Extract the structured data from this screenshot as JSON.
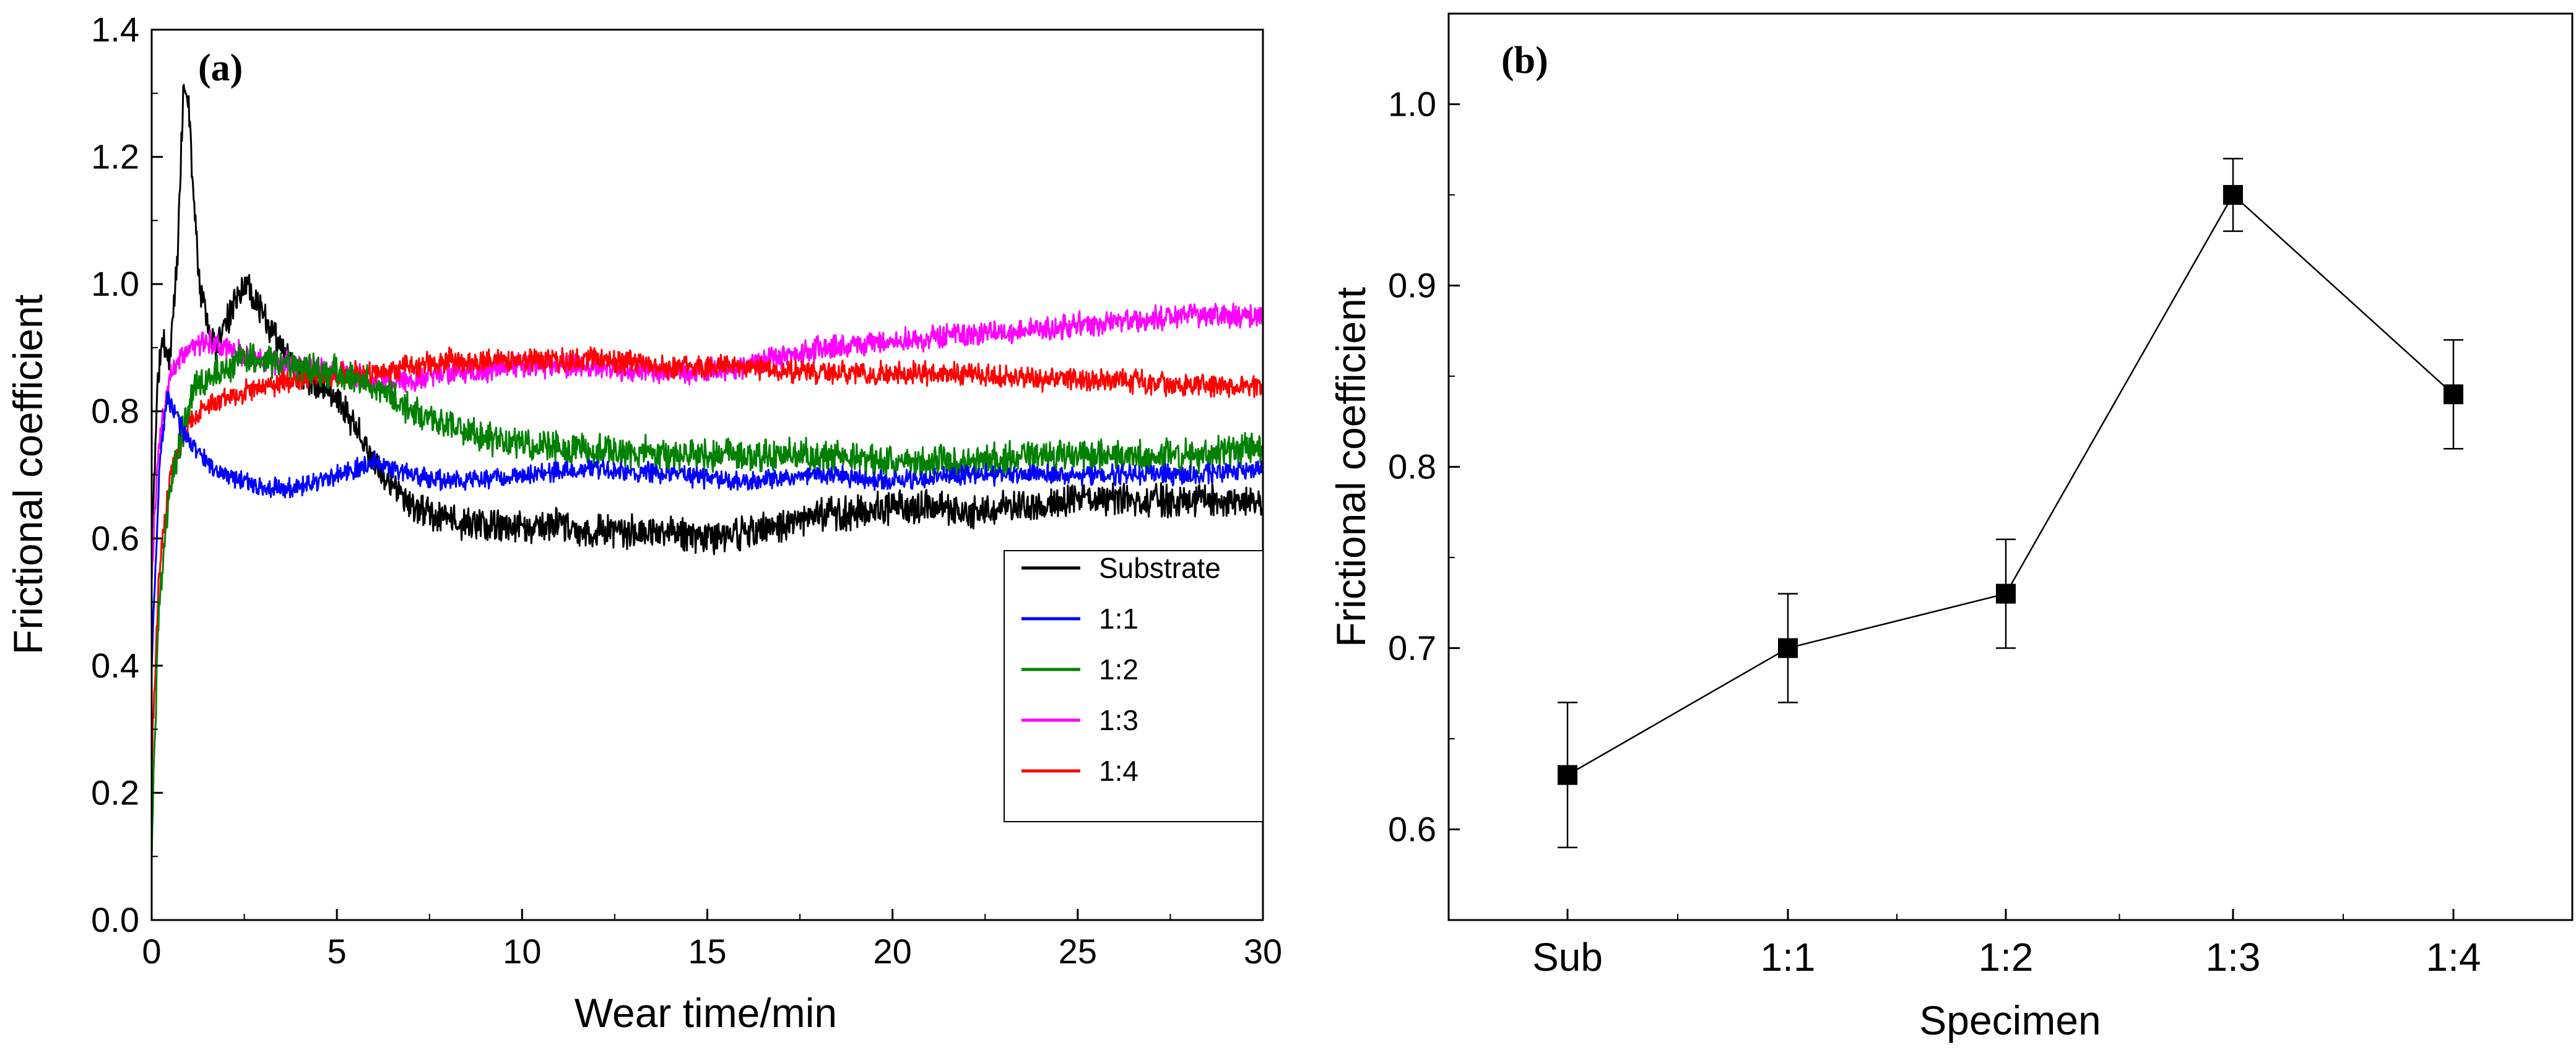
{
  "chart_data": [
    {
      "panel": "(a)",
      "type": "line",
      "xlabel": "Wear time/min",
      "ylabel": "Frictional coefficient",
      "xlim": [
        0,
        30
      ],
      "ylim": [
        0.0,
        1.4
      ],
      "xticks": [
        0,
        5,
        10,
        15,
        20,
        25,
        30
      ],
      "yticks": [
        "0.0",
        "0.2",
        "0.4",
        "0.6",
        "0.8",
        "1.0",
        "1.2",
        "1.4"
      ],
      "legend_position": "right, lower-middle",
      "series": [
        {
          "name": "Substrate",
          "color": "#000000",
          "noise": 0.02,
          "x": [
            0,
            0.15,
            0.3,
            0.5,
            0.7,
            0.85,
            1.0,
            1.15,
            1.3,
            1.5,
            1.8,
            2.2,
            2.6,
            3.0,
            3.5,
            4.0,
            4.5,
            5.0,
            5.5,
            6.0,
            6.5,
            7.0,
            8.0,
            9.0,
            10,
            11,
            12,
            13,
            14,
            15,
            16,
            17,
            18,
            19,
            20,
            21,
            22,
            23,
            24,
            25,
            26,
            27,
            28,
            29,
            30
          ],
          "y": [
            0.55,
            0.85,
            0.92,
            0.88,
            1.05,
            1.3,
            1.28,
            1.12,
            1.0,
            0.93,
            0.9,
            0.97,
            1.0,
            0.95,
            0.9,
            0.86,
            0.84,
            0.82,
            0.78,
            0.72,
            0.68,
            0.65,
            0.63,
            0.62,
            0.62,
            0.62,
            0.61,
            0.61,
            0.61,
            0.6,
            0.61,
            0.62,
            0.64,
            0.64,
            0.65,
            0.65,
            0.64,
            0.65,
            0.65,
            0.66,
            0.66,
            0.66,
            0.66,
            0.66,
            0.66
          ]
        },
        {
          "name": "1:1",
          "color": "#0000ff",
          "noise": 0.012,
          "x": [
            0,
            0.2,
            0.4,
            0.6,
            1.0,
            1.5,
            2.0,
            3.0,
            4.0,
            5.0,
            6.0,
            7.0,
            8.0,
            10,
            12,
            14,
            16,
            18,
            20,
            22,
            24,
            26,
            28,
            30
          ],
          "y": [
            0.4,
            0.7,
            0.82,
            0.8,
            0.75,
            0.72,
            0.7,
            0.68,
            0.68,
            0.7,
            0.72,
            0.7,
            0.69,
            0.7,
            0.71,
            0.7,
            0.69,
            0.7,
            0.69,
            0.7,
            0.7,
            0.7,
            0.7,
            0.71
          ]
        },
        {
          "name": "1:2",
          "color": "#008000",
          "noise": 0.02,
          "x": [
            0,
            0.2,
            0.5,
            0.8,
            1.2,
            1.8,
            2.5,
            3.0,
            4.0,
            5.0,
            6.0,
            7.0,
            8.0,
            9.0,
            10,
            12,
            14,
            16,
            18,
            20,
            22,
            24,
            26,
            28,
            30
          ],
          "y": [
            0.12,
            0.5,
            0.68,
            0.76,
            0.84,
            0.86,
            0.88,
            0.88,
            0.87,
            0.86,
            0.84,
            0.8,
            0.78,
            0.76,
            0.75,
            0.74,
            0.73,
            0.73,
            0.73,
            0.72,
            0.72,
            0.73,
            0.73,
            0.73,
            0.74
          ]
        },
        {
          "name": "1:3",
          "color": "#ff00ff",
          "noise": 0.015,
          "x": [
            0,
            0.2,
            0.5,
            1.0,
            1.5,
            2.0,
            3.0,
            4.0,
            5.0,
            6.0,
            7.0,
            8.0,
            10,
            12,
            14,
            16,
            18,
            20,
            22,
            24,
            26,
            28,
            30
          ],
          "y": [
            0.55,
            0.75,
            0.86,
            0.9,
            0.91,
            0.9,
            0.88,
            0.87,
            0.86,
            0.85,
            0.85,
            0.86,
            0.87,
            0.87,
            0.86,
            0.87,
            0.9,
            0.91,
            0.92,
            0.93,
            0.94,
            0.95,
            0.95
          ]
        },
        {
          "name": "1:4",
          "color": "#ff0000",
          "noise": 0.014,
          "x": [
            0,
            0.2,
            0.5,
            1.0,
            1.5,
            2.0,
            3.0,
            4.0,
            5.0,
            6.0,
            7.0,
            8.0,
            10,
            12,
            14,
            16,
            18,
            20,
            22,
            24,
            26,
            28,
            30
          ],
          "y": [
            0.25,
            0.55,
            0.7,
            0.78,
            0.81,
            0.82,
            0.84,
            0.85,
            0.86,
            0.86,
            0.87,
            0.88,
            0.88,
            0.88,
            0.87,
            0.87,
            0.86,
            0.86,
            0.86,
            0.85,
            0.85,
            0.84,
            0.84
          ]
        }
      ]
    },
    {
      "panel": "(b)",
      "type": "line",
      "xlabel": "Specimen",
      "ylabel": "Frictional coefficient",
      "categories": [
        "Sub",
        "1:1",
        "1:2",
        "1:3",
        "1:4"
      ],
      "values": [
        0.63,
        0.7,
        0.73,
        0.95,
        0.84
      ],
      "errors": [
        0.04,
        0.03,
        0.03,
        0.02,
        0.03
      ],
      "ylim": [
        0.55,
        1.05
      ],
      "yticks": [
        "0.6",
        "0.7",
        "0.8",
        "0.9",
        "1.0"
      ],
      "color": "#000000",
      "marker": "square"
    }
  ]
}
